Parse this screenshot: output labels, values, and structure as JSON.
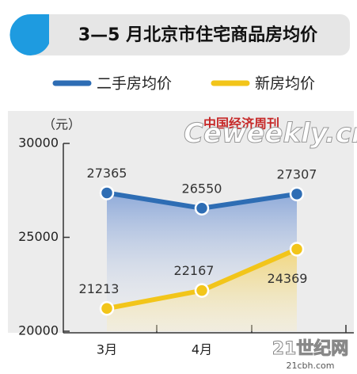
{
  "chart_data": {
    "type": "line",
    "title": "3—5 月北京市住宅商品房均价",
    "unit": "（元）",
    "categories": [
      "3月",
      "4月",
      null
    ],
    "series": [
      {
        "name": "二手房均价",
        "color": "#2e6db4",
        "values": [
          27365,
          26550,
          27307
        ]
      },
      {
        "name": "新房均价",
        "color": "#f2c51a",
        "values": [
          21213,
          22167,
          24369
        ]
      }
    ],
    "ylim": [
      20000,
      30000
    ],
    "yticks": [
      20000,
      25000,
      30000
    ],
    "watermarks": [
      "中国经济周刊",
      "Ceweekly.cn",
      "21世纪网",
      "21cbh.com"
    ]
  }
}
